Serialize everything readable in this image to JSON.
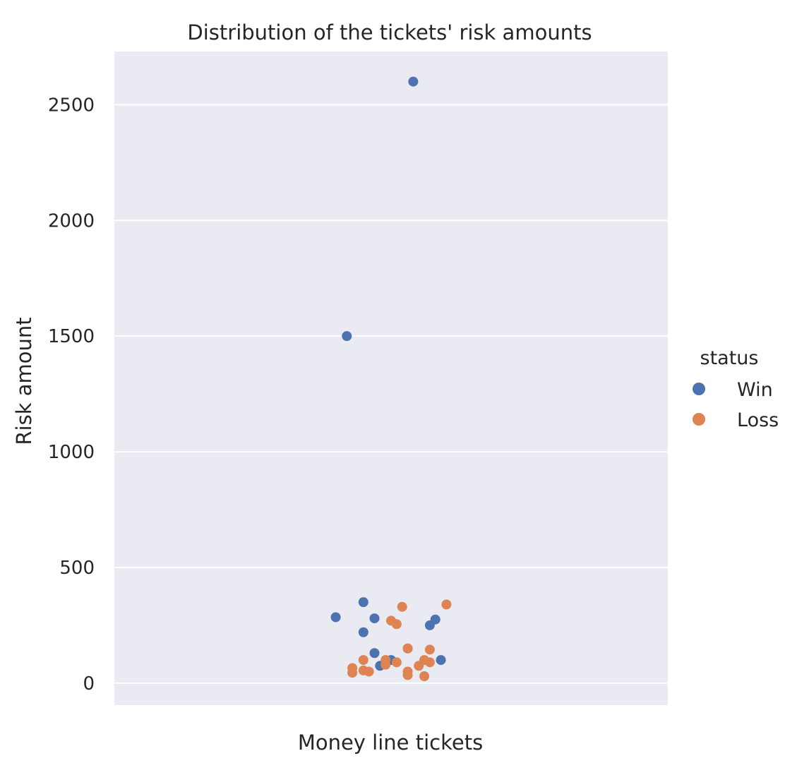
{
  "chart_data": {
    "type": "scatter",
    "title": "Distribution of the tickets' risk amounts",
    "xlabel": "",
    "ylabel": "Risk amount",
    "categories": [
      "Money line tickets"
    ],
    "ylim": [
      -95,
      2730
    ],
    "yticks": [
      0,
      500,
      1000,
      1500,
      2000,
      2500
    ],
    "grid": true,
    "legend": {
      "title": "status",
      "placement": "center-right",
      "entries": [
        {
          "label": "Win",
          "color": "#4c72b0"
        },
        {
          "label": "Loss",
          "color": "#dd8452"
        }
      ]
    },
    "background_color": "#eaeaf2",
    "series": [
      {
        "name": "Win",
        "color": "#4c72b0",
        "points": [
          {
            "x": 0.04,
            "y": 2600
          },
          {
            "x": -0.08,
            "y": 1500
          },
          {
            "x": -0.05,
            "y": 350
          },
          {
            "x": -0.1,
            "y": 285
          },
          {
            "x": -0.03,
            "y": 280
          },
          {
            "x": 0.08,
            "y": 275
          },
          {
            "x": 0.07,
            "y": 250
          },
          {
            "x": -0.05,
            "y": 220
          },
          {
            "x": 0.03,
            "y": 150
          },
          {
            "x": -0.03,
            "y": 130
          },
          {
            "x": 0.09,
            "y": 100
          },
          {
            "x": 0.0,
            "y": 100
          },
          {
            "x": -0.02,
            "y": 75
          }
        ]
      },
      {
        "name": "Loss",
        "color": "#dd8452",
        "points": [
          {
            "x": 0.1,
            "y": 340
          },
          {
            "x": 0.02,
            "y": 330
          },
          {
            "x": 0.0,
            "y": 270
          },
          {
            "x": 0.01,
            "y": 255
          },
          {
            "x": 0.03,
            "y": 150
          },
          {
            "x": 0.07,
            "y": 145
          },
          {
            "x": -0.05,
            "y": 100
          },
          {
            "x": -0.01,
            "y": 100
          },
          {
            "x": 0.06,
            "y": 100
          },
          {
            "x": -0.01,
            "y": 80
          },
          {
            "x": 0.07,
            "y": 90
          },
          {
            "x": 0.01,
            "y": 90
          },
          {
            "x": 0.05,
            "y": 75
          },
          {
            "x": -0.07,
            "y": 65
          },
          {
            "x": -0.05,
            "y": 55
          },
          {
            "x": -0.07,
            "y": 45
          },
          {
            "x": -0.04,
            "y": 50
          },
          {
            "x": 0.03,
            "y": 50
          },
          {
            "x": 0.03,
            "y": 35
          },
          {
            "x": 0.06,
            "y": 30
          }
        ]
      }
    ]
  }
}
